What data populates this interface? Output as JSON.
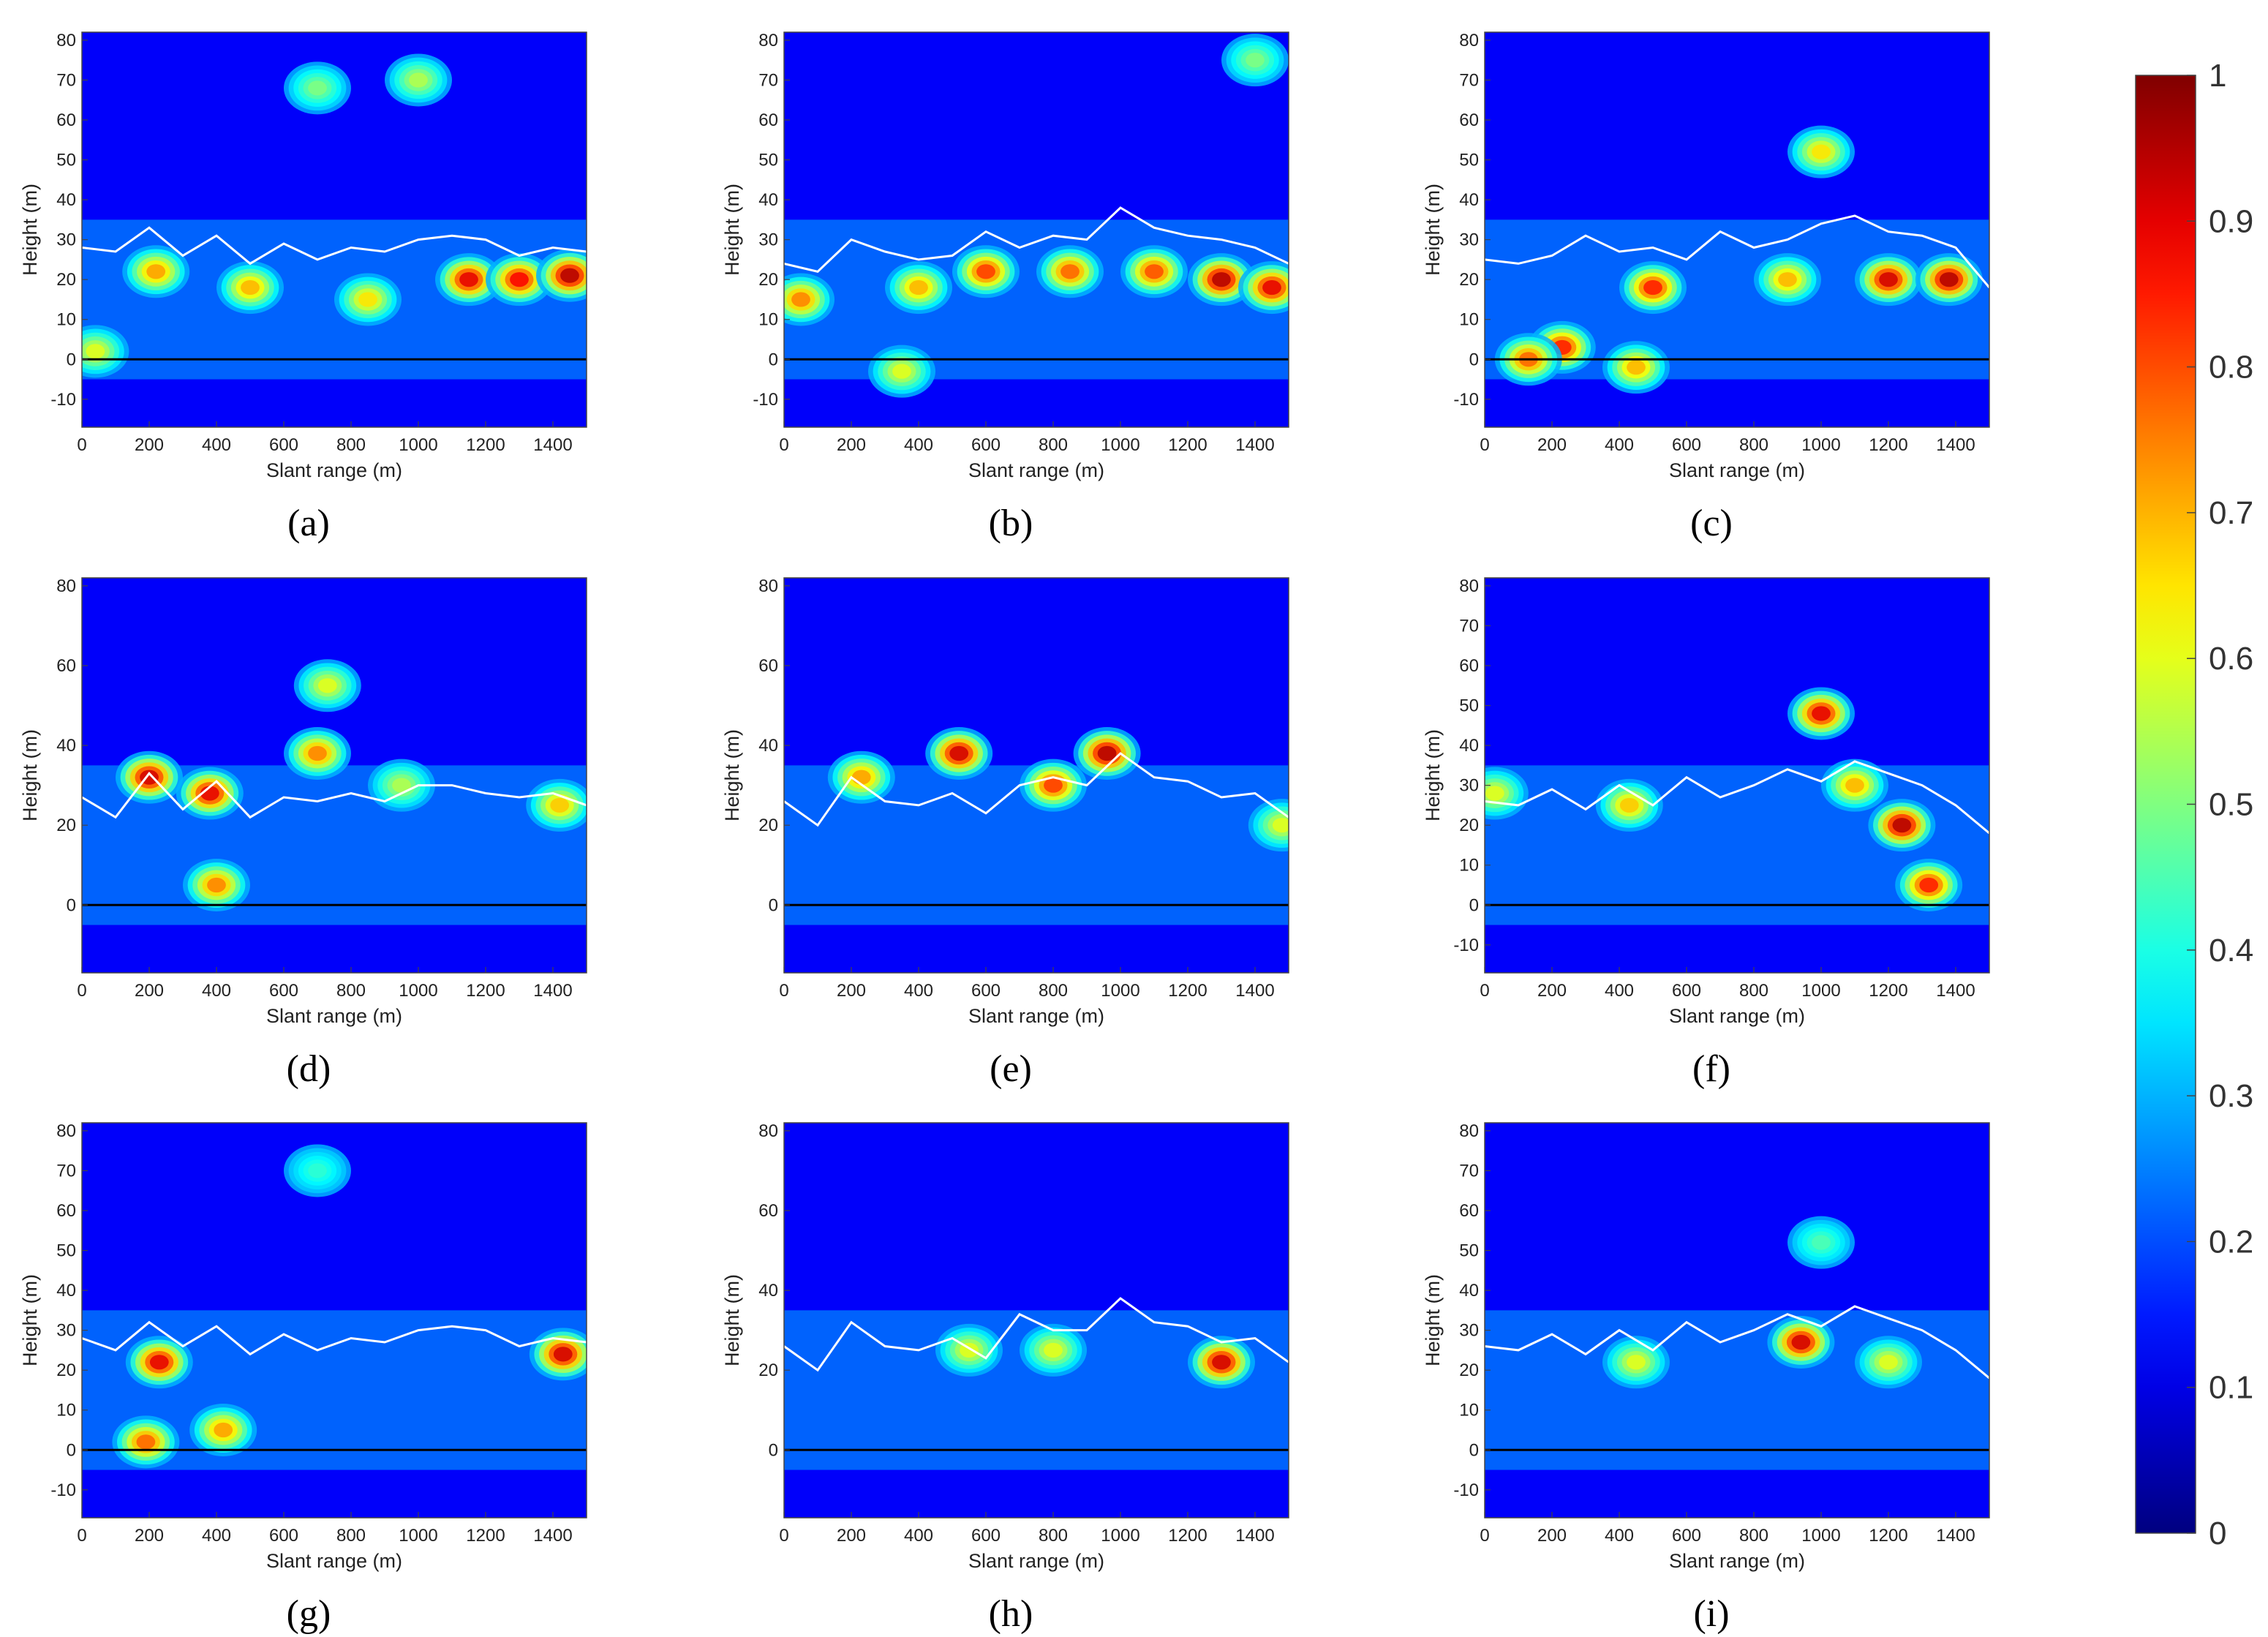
{
  "chart_data": [
    {
      "panel": "a",
      "type": "heatmap",
      "xlabel": "Slant range (m)",
      "ylabel": "Height (m)",
      "xlim": [
        0,
        1500
      ],
      "ylim": [
        -17,
        82
      ],
      "xticks": [
        0,
        200,
        400,
        600,
        800,
        1000,
        1200,
        1400
      ],
      "yticks": [
        -10,
        0,
        10,
        20,
        30,
        40,
        50,
        60,
        70,
        80
      ],
      "value_range": [
        0,
        1
      ],
      "colormap": "jet",
      "reference_line_y": 0,
      "canopy_line": {
        "x": [
          0,
          100,
          200,
          300,
          400,
          500,
          600,
          700,
          800,
          900,
          1000,
          1100,
          1200,
          1300,
          1400,
          1500
        ],
        "y": [
          28,
          27,
          33,
          26,
          31,
          24,
          29,
          25,
          28,
          27,
          30,
          31,
          30,
          26,
          28,
          27
        ]
      },
      "hotspots": [
        {
          "x": 1150,
          "y": 20,
          "v": 0.9
        },
        {
          "x": 1300,
          "y": 20,
          "v": 0.88
        },
        {
          "x": 1450,
          "y": 21,
          "v": 0.95
        },
        {
          "x": 220,
          "y": 22,
          "v": 0.72
        },
        {
          "x": 500,
          "y": 18,
          "v": 0.7
        },
        {
          "x": 850,
          "y": 15,
          "v": 0.65
        },
        {
          "x": 40,
          "y": 2,
          "v": 0.6
        },
        {
          "x": 700,
          "y": 68,
          "v": 0.5
        },
        {
          "x": 1000,
          "y": 70,
          "v": 0.55
        }
      ]
    },
    {
      "panel": "b",
      "type": "heatmap",
      "xlabel": "Slant range (m)",
      "ylabel": "Height (m)",
      "xlim": [
        0,
        1500
      ],
      "ylim": [
        -17,
        82
      ],
      "xticks": [
        0,
        200,
        400,
        600,
        800,
        1000,
        1200,
        1400
      ],
      "yticks": [
        -10,
        0,
        10,
        20,
        30,
        40,
        50,
        60,
        70,
        80
      ],
      "value_range": [
        0,
        1
      ],
      "colormap": "jet",
      "reference_line_y": 0,
      "canopy_line": {
        "x": [
          0,
          100,
          200,
          300,
          400,
          500,
          600,
          700,
          800,
          900,
          1000,
          1100,
          1200,
          1300,
          1400,
          1500
        ],
        "y": [
          24,
          22,
          30,
          27,
          25,
          26,
          32,
          28,
          31,
          30,
          38,
          33,
          31,
          30,
          28,
          24
        ]
      },
      "hotspots": [
        {
          "x": 1300,
          "y": 20,
          "v": 0.95
        },
        {
          "x": 1450,
          "y": 18,
          "v": 0.9
        },
        {
          "x": 600,
          "y": 22,
          "v": 0.82
        },
        {
          "x": 850,
          "y": 22,
          "v": 0.78
        },
        {
          "x": 50,
          "y": 15,
          "v": 0.75
        },
        {
          "x": 400,
          "y": 18,
          "v": 0.7
        },
        {
          "x": 1100,
          "y": 22,
          "v": 0.8
        },
        {
          "x": 350,
          "y": -3,
          "v": 0.6
        },
        {
          "x": 1400,
          "y": 75,
          "v": 0.5
        }
      ]
    },
    {
      "panel": "c",
      "type": "heatmap",
      "xlabel": "Slant range (m)",
      "ylabel": "Height (m)",
      "xlim": [
        0,
        1500
      ],
      "ylim": [
        -17,
        82
      ],
      "xticks": [
        0,
        200,
        400,
        600,
        800,
        1000,
        1200,
        1400
      ],
      "yticks": [
        -10,
        0,
        10,
        20,
        30,
        40,
        50,
        60,
        70,
        80
      ],
      "value_range": [
        0,
        1
      ],
      "colormap": "jet",
      "reference_line_y": 0,
      "canopy_line": {
        "x": [
          0,
          100,
          200,
          300,
          400,
          500,
          600,
          700,
          800,
          900,
          1000,
          1100,
          1200,
          1300,
          1400,
          1500
        ],
        "y": [
          25,
          24,
          26,
          31,
          27,
          28,
          25,
          32,
          28,
          30,
          34,
          36,
          32,
          31,
          28,
          18
        ]
      },
      "hotspots": [
        {
          "x": 1200,
          "y": 20,
          "v": 0.92
        },
        {
          "x": 1380,
          "y": 20,
          "v": 0.95
        },
        {
          "x": 500,
          "y": 18,
          "v": 0.85
        },
        {
          "x": 230,
          "y": 3,
          "v": 0.85
        },
        {
          "x": 130,
          "y": 0,
          "v": 0.78
        },
        {
          "x": 450,
          "y": -2,
          "v": 0.7
        },
        {
          "x": 1000,
          "y": 52,
          "v": 0.65
        },
        {
          "x": 900,
          "y": 20,
          "v": 0.7
        }
      ]
    },
    {
      "panel": "d",
      "type": "heatmap",
      "xlabel": "Slant range (m)",
      "ylabel": "Height (m)",
      "xlim": [
        0,
        1500
      ],
      "ylim": [
        -17,
        82
      ],
      "xticks": [
        0,
        200,
        400,
        600,
        800,
        1000,
        1200,
        1400
      ],
      "yticks": [
        0,
        20,
        40,
        60,
        80
      ],
      "value_range": [
        0,
        1
      ],
      "colormap": "jet",
      "reference_line_y": 0,
      "canopy_line": {
        "x": [
          0,
          100,
          200,
          300,
          400,
          500,
          600,
          700,
          800,
          900,
          1000,
          1100,
          1200,
          1300,
          1400,
          1500
        ],
        "y": [
          27,
          22,
          33,
          24,
          31,
          22,
          27,
          26,
          28,
          26,
          30,
          30,
          28,
          27,
          28,
          25
        ]
      },
      "hotspots": [
        {
          "x": 200,
          "y": 32,
          "v": 0.92
        },
        {
          "x": 380,
          "y": 28,
          "v": 0.9
        },
        {
          "x": 400,
          "y": 5,
          "v": 0.75
        },
        {
          "x": 700,
          "y": 38,
          "v": 0.75
        },
        {
          "x": 730,
          "y": 55,
          "v": 0.6
        },
        {
          "x": 950,
          "y": 30,
          "v": 0.55
        },
        {
          "x": 1420,
          "y": 25,
          "v": 0.68
        }
      ]
    },
    {
      "panel": "e",
      "type": "heatmap",
      "xlabel": "Slant range (m)",
      "ylabel": "Height (m)",
      "xlim": [
        0,
        1500
      ],
      "ylim": [
        -17,
        82
      ],
      "xticks": [
        0,
        200,
        400,
        600,
        800,
        1000,
        1200,
        1400
      ],
      "yticks": [
        0,
        20,
        40,
        60,
        80
      ],
      "value_range": [
        0,
        1
      ],
      "colormap": "jet",
      "reference_line_y": 0,
      "canopy_line": {
        "x": [
          0,
          100,
          200,
          300,
          400,
          500,
          600,
          700,
          800,
          900,
          1000,
          1100,
          1200,
          1300,
          1400,
          1500
        ],
        "y": [
          26,
          20,
          32,
          26,
          25,
          28,
          23,
          30,
          32,
          30,
          38,
          32,
          31,
          27,
          28,
          22
        ]
      },
      "hotspots": [
        {
          "x": 520,
          "y": 38,
          "v": 0.92
        },
        {
          "x": 800,
          "y": 30,
          "v": 0.82
        },
        {
          "x": 960,
          "y": 38,
          "v": 0.95
        },
        {
          "x": 230,
          "y": 32,
          "v": 0.72
        },
        {
          "x": 1480,
          "y": 20,
          "v": 0.6
        }
      ]
    },
    {
      "panel": "f",
      "type": "heatmap",
      "xlabel": "Slant range (m)",
      "ylabel": "Height (m)",
      "xlim": [
        0,
        1500
      ],
      "ylim": [
        -17,
        82
      ],
      "xticks": [
        0,
        200,
        400,
        600,
        800,
        1000,
        1200,
        1400
      ],
      "yticks": [
        -10,
        0,
        10,
        20,
        30,
        40,
        50,
        60,
        70,
        80
      ],
      "value_range": [
        0,
        1
      ],
      "colormap": "jet",
      "reference_line_y": 0,
      "canopy_line": {
        "x": [
          0,
          100,
          200,
          300,
          400,
          500,
          600,
          700,
          800,
          900,
          1000,
          1100,
          1200,
          1300,
          1400,
          1500
        ],
        "y": [
          26,
          25,
          29,
          24,
          30,
          25,
          32,
          27,
          30,
          34,
          31,
          36,
          33,
          30,
          25,
          18
        ]
      },
      "hotspots": [
        {
          "x": 1000,
          "y": 48,
          "v": 0.9
        },
        {
          "x": 1240,
          "y": 20,
          "v": 0.95
        },
        {
          "x": 1320,
          "y": 5,
          "v": 0.85
        },
        {
          "x": 1100,
          "y": 30,
          "v": 0.7
        },
        {
          "x": 430,
          "y": 25,
          "v": 0.68
        },
        {
          "x": 30,
          "y": 28,
          "v": 0.6
        }
      ]
    },
    {
      "panel": "g",
      "type": "heatmap",
      "xlabel": "Slant range (m)",
      "ylabel": "Height (m)",
      "xlim": [
        0,
        1500
      ],
      "ylim": [
        -17,
        82
      ],
      "xticks": [
        0,
        200,
        400,
        600,
        800,
        1000,
        1200,
        1400
      ],
      "yticks": [
        -10,
        0,
        10,
        20,
        30,
        40,
        50,
        60,
        70,
        80
      ],
      "value_range": [
        0,
        1
      ],
      "colormap": "jet",
      "reference_line_y": 0,
      "canopy_line": {
        "x": [
          0,
          100,
          200,
          300,
          400,
          500,
          600,
          700,
          800,
          900,
          1000,
          1100,
          1200,
          1300,
          1400,
          1500
        ],
        "y": [
          28,
          25,
          32,
          26,
          31,
          24,
          29,
          25,
          28,
          27,
          30,
          31,
          30,
          26,
          28,
          27
        ]
      },
      "hotspots": [
        {
          "x": 230,
          "y": 22,
          "v": 0.9
        },
        {
          "x": 1430,
          "y": 24,
          "v": 0.92
        },
        {
          "x": 190,
          "y": 2,
          "v": 0.78
        },
        {
          "x": 420,
          "y": 5,
          "v": 0.72
        },
        {
          "x": 700,
          "y": 70,
          "v": 0.42
        }
      ]
    },
    {
      "panel": "h",
      "type": "heatmap",
      "xlabel": "Slant range (m)",
      "ylabel": "Height (m)",
      "xlim": [
        0,
        1500
      ],
      "ylim": [
        -17,
        82
      ],
      "xticks": [
        0,
        200,
        400,
        600,
        800,
        1000,
        1200,
        1400
      ],
      "yticks": [
        0,
        20,
        40,
        60,
        80
      ],
      "value_range": [
        0,
        1
      ],
      "colormap": "jet",
      "reference_line_y": 0,
      "canopy_line": {
        "x": [
          0,
          100,
          200,
          300,
          400,
          500,
          600,
          700,
          800,
          900,
          1000,
          1100,
          1200,
          1300,
          1400,
          1500
        ],
        "y": [
          26,
          20,
          32,
          26,
          25,
          28,
          23,
          34,
          30,
          30,
          38,
          32,
          31,
          27,
          28,
          22
        ]
      },
      "hotspots": [
        {
          "x": 1300,
          "y": 22,
          "v": 0.92
        },
        {
          "x": 550,
          "y": 25,
          "v": 0.6
        },
        {
          "x": 800,
          "y": 25,
          "v": 0.6
        }
      ]
    },
    {
      "panel": "i",
      "type": "heatmap",
      "xlabel": "Slant range (m)",
      "ylabel": "Height (m)",
      "xlim": [
        0,
        1500
      ],
      "ylim": [
        -17,
        82
      ],
      "xticks": [
        0,
        200,
        400,
        600,
        800,
        1000,
        1200,
        1400
      ],
      "yticks": [
        -10,
        0,
        10,
        20,
        30,
        40,
        50,
        60,
        70,
        80
      ],
      "value_range": [
        0,
        1
      ],
      "colormap": "jet",
      "reference_line_y": 0,
      "canopy_line": {
        "x": [
          0,
          100,
          200,
          300,
          400,
          500,
          600,
          700,
          800,
          900,
          1000,
          1100,
          1200,
          1300,
          1400,
          1500
        ],
        "y": [
          26,
          25,
          29,
          24,
          30,
          25,
          32,
          27,
          30,
          34,
          31,
          36,
          33,
          30,
          25,
          18
        ]
      },
      "hotspots": [
        {
          "x": 940,
          "y": 27,
          "v": 0.92
        },
        {
          "x": 1000,
          "y": 52,
          "v": 0.45
        },
        {
          "x": 450,
          "y": 22,
          "v": 0.6
        },
        {
          "x": 1200,
          "y": 22,
          "v": 0.6
        }
      ]
    }
  ],
  "captions": [
    "(a)",
    "(b)",
    "(c)",
    "(d)",
    "(e)",
    "(f)",
    "(g)",
    "(h)",
    "(i)"
  ],
  "colorbar": {
    "ticks": [
      0,
      0.1,
      0.2,
      0.3,
      0.4,
      0.5,
      0.6,
      0.7,
      0.8,
      0.9,
      1
    ],
    "tick_labels": [
      "0",
      "0.1",
      "0.2",
      "0.3",
      "0.4",
      "0.5",
      "0.6",
      "0.7",
      "0.8",
      "0.9",
      "1"
    ],
    "colormap": "jet"
  }
}
